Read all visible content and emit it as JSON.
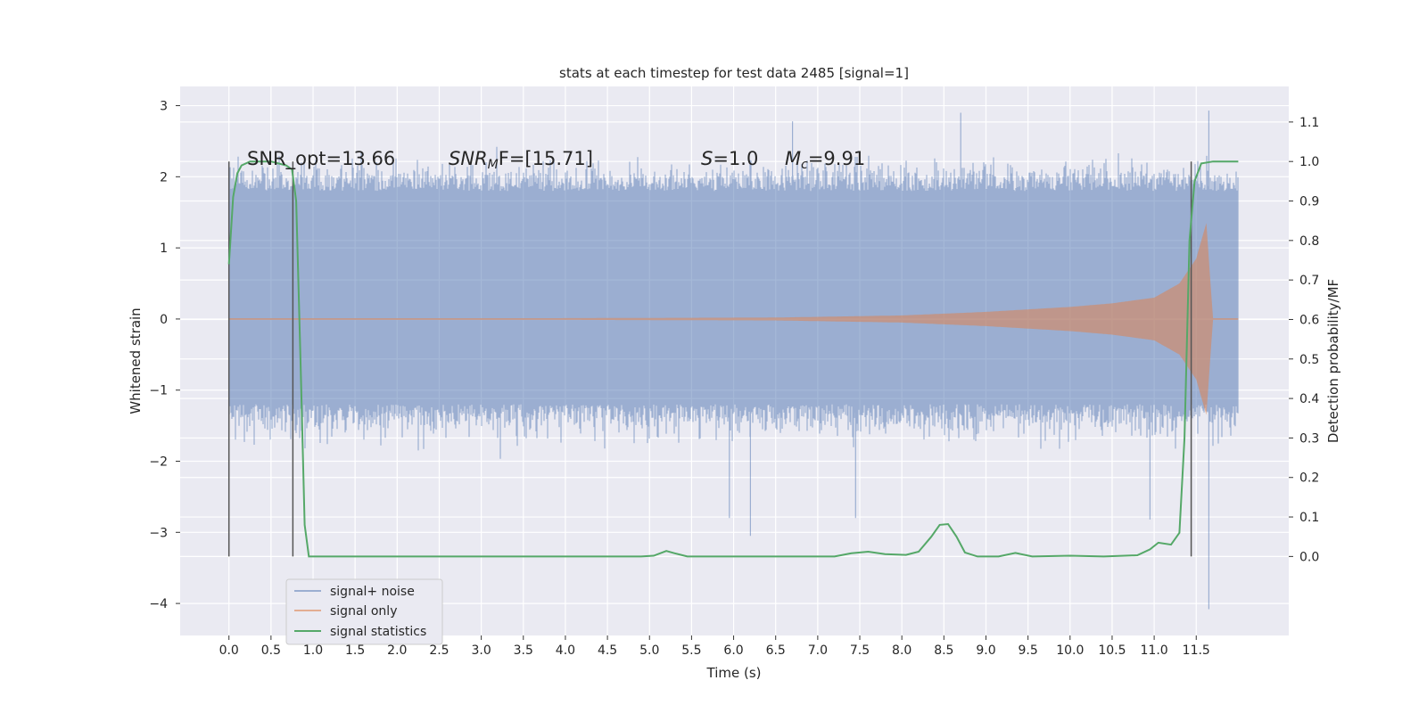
{
  "chart_data": {
    "type": "line",
    "title": "stats at each timestep for test data 2485 [signal=1]",
    "xlabel": "Time (s)",
    "ylabel_left": "Whitened strain",
    "ylabel_right": "Detection probability/MF",
    "xlim": [
      -0.58,
      12.6
    ],
    "ylim_left": [
      -4.45,
      3.27
    ],
    "ylim_right": [
      -0.2,
      1.19
    ],
    "xticks": [
      "0.0",
      "0.5",
      "1.0",
      "1.5",
      "2.0",
      "2.5",
      "3.0",
      "3.5",
      "4.0",
      "4.5",
      "5.0",
      "5.5",
      "6.0",
      "6.5",
      "7.0",
      "7.5",
      "8.0",
      "8.5",
      "9.0",
      "9.5",
      "10.0",
      "10.5",
      "11.0",
      "11.5"
    ],
    "yticks_left": [
      "3",
      "2",
      "1",
      "0",
      "−1",
      "−2",
      "−3",
      "−4"
    ],
    "yticks_right": [
      "1.1",
      "1.0",
      "0.9",
      "0.8",
      "0.7",
      "0.6",
      "0.5",
      "0.4",
      "0.3",
      "0.2",
      "0.1",
      "0.0"
    ],
    "grid": true,
    "legend_position": "lower-left",
    "annotations": {
      "snr_opt": "SNR_opt=13.66",
      "snr_mf": "F=[15.71]",
      "snr_mf_prefix": "SNR",
      "snr_mf_sub": "M",
      "s_value": "=1.0",
      "s_symbol": "S",
      "mc_value": "=9.91",
      "mc_symbol": "M",
      "mc_sub": "c"
    },
    "vertical_markers_x": [
      0.0,
      0.76,
      11.44
    ],
    "series": [
      {
        "name": "signal+ noise",
        "color": "#4c72b0",
        "x_range": [
          0.0,
          12.0
        ],
        "typical_band": [
          -1.2,
          1.8
        ],
        "peaks": [
          {
            "x": 11.65,
            "y": 2.93
          },
          {
            "x": 11.65,
            "y": -4.08
          },
          {
            "x": 6.7,
            "y": 2.78
          },
          {
            "x": 8.7,
            "y": 2.9
          },
          {
            "x": 6.2,
            "y": -3.05
          },
          {
            "x": 5.95,
            "y": -2.8
          },
          {
            "x": 10.95,
            "y": -2.82
          },
          {
            "x": 7.45,
            "y": -2.8
          }
        ]
      },
      {
        "name": "signal only",
        "color": "#dd8452",
        "chirp_start": 6.5,
        "merger": 11.65,
        "envelope": [
          {
            "t": 0.0,
            "a": 0.0
          },
          {
            "t": 6.5,
            "a": 0.02
          },
          {
            "t": 8.0,
            "a": 0.05
          },
          {
            "t": 9.0,
            "a": 0.1
          },
          {
            "t": 10.0,
            "a": 0.17
          },
          {
            "t": 10.5,
            "a": 0.22
          },
          {
            "t": 11.0,
            "a": 0.3
          },
          {
            "t": 11.3,
            "a": 0.5
          },
          {
            "t": 11.5,
            "a": 0.85
          },
          {
            "t": 11.62,
            "a": 1.35
          },
          {
            "t": 11.7,
            "a": 0.0
          },
          {
            "t": 12.0,
            "a": 0.0
          }
        ]
      },
      {
        "name": "signal statistics",
        "color": "#55a868",
        "axis": "right",
        "points": [
          {
            "x": 0.0,
            "y": 0.74
          },
          {
            "x": 0.05,
            "y": 0.91
          },
          {
            "x": 0.1,
            "y": 0.97
          },
          {
            "x": 0.15,
            "y": 0.99
          },
          {
            "x": 0.25,
            "y": 1.0
          },
          {
            "x": 0.5,
            "y": 1.0
          },
          {
            "x": 0.68,
            "y": 0.99
          },
          {
            "x": 0.75,
            "y": 0.98
          },
          {
            "x": 0.8,
            "y": 0.9
          },
          {
            "x": 0.85,
            "y": 0.5
          },
          {
            "x": 0.9,
            "y": 0.08
          },
          {
            "x": 0.95,
            "y": 0.0
          },
          {
            "x": 1.0,
            "y": 0.0
          },
          {
            "x": 4.9,
            "y": 0.0
          },
          {
            "x": 5.05,
            "y": 0.002
          },
          {
            "x": 5.2,
            "y": 0.014
          },
          {
            "x": 5.3,
            "y": 0.008
          },
          {
            "x": 5.45,
            "y": 0.0
          },
          {
            "x": 7.2,
            "y": 0.0
          },
          {
            "x": 7.4,
            "y": 0.008
          },
          {
            "x": 7.6,
            "y": 0.012
          },
          {
            "x": 7.8,
            "y": 0.006
          },
          {
            "x": 8.05,
            "y": 0.004
          },
          {
            "x": 8.2,
            "y": 0.012
          },
          {
            "x": 8.35,
            "y": 0.05
          },
          {
            "x": 8.45,
            "y": 0.08
          },
          {
            "x": 8.55,
            "y": 0.082
          },
          {
            "x": 8.65,
            "y": 0.05
          },
          {
            "x": 8.75,
            "y": 0.01
          },
          {
            "x": 8.9,
            "y": 0.0
          },
          {
            "x": 9.15,
            "y": 0.0
          },
          {
            "x": 9.35,
            "y": 0.009
          },
          {
            "x": 9.55,
            "y": 0.0
          },
          {
            "x": 10.0,
            "y": 0.002
          },
          {
            "x": 10.4,
            "y": 0.0
          },
          {
            "x": 10.8,
            "y": 0.003
          },
          {
            "x": 10.95,
            "y": 0.018
          },
          {
            "x": 11.05,
            "y": 0.035
          },
          {
            "x": 11.2,
            "y": 0.03
          },
          {
            "x": 11.3,
            "y": 0.06
          },
          {
            "x": 11.36,
            "y": 0.3
          },
          {
            "x": 11.42,
            "y": 0.8
          },
          {
            "x": 11.48,
            "y": 0.95
          },
          {
            "x": 11.56,
            "y": 0.995
          },
          {
            "x": 11.7,
            "y": 1.0
          },
          {
            "x": 12.0,
            "y": 1.0
          }
        ]
      }
    ]
  }
}
